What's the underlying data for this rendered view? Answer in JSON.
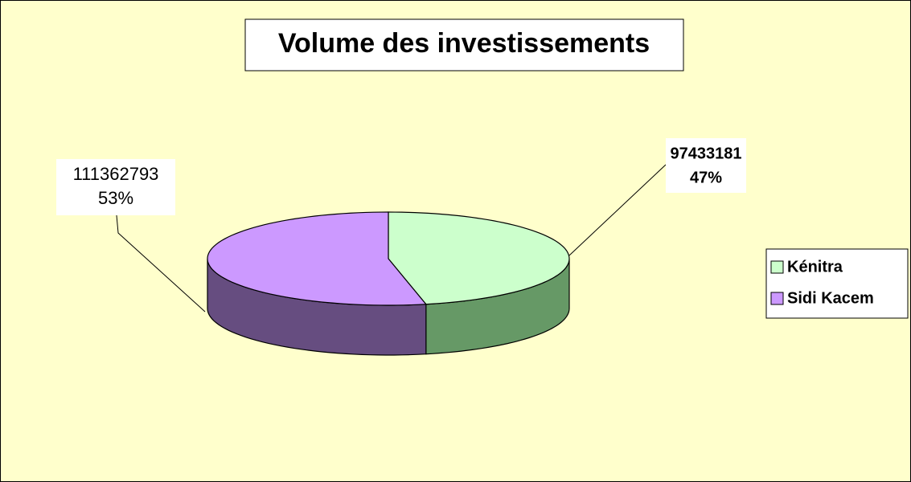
{
  "chart_data": {
    "type": "pie",
    "title": "Volume des investissements",
    "categories": [
      "Kénitra",
      "Sidi Kacem"
    ],
    "values": [
      97433181,
      111362793
    ],
    "percent_labels": [
      "47%",
      "53%"
    ],
    "colors": [
      "#ccffcc",
      "#cc99ff"
    ],
    "side_colors": [
      "#669966",
      "#664d80"
    ],
    "legend": "right"
  }
}
